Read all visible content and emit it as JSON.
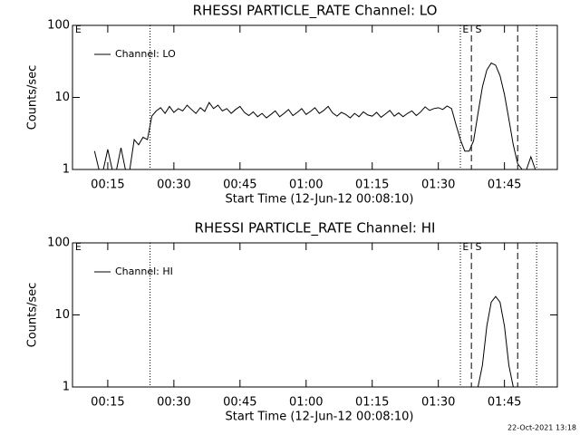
{
  "chart_data": [
    {
      "type": "line",
      "title": "RHESSI PARTICLE_RATE Channel: LO",
      "xlabel": "Start Time (12-Jun-12 00:08:10)",
      "ylabel": "Counts/sec",
      "log_y": true,
      "legend": "upper left",
      "color": "#000000",
      "xlim": [
        7,
        117
      ],
      "ylim": [
        1,
        100
      ],
      "yticks": [
        1,
        10,
        100
      ],
      "xticks": [
        {
          "value": 15,
          "label": "00:15"
        },
        {
          "value": 30,
          "label": "00:30"
        },
        {
          "value": 45,
          "label": "00:45"
        },
        {
          "value": 60,
          "label": "01:00"
        },
        {
          "value": 75,
          "label": "01:15"
        },
        {
          "value": 90,
          "label": "01:30"
        },
        {
          "value": 105,
          "label": "01:45"
        }
      ],
      "vlines": [
        {
          "x": 24.6,
          "style": "dotted"
        },
        {
          "x": 95,
          "style": "dotted"
        },
        {
          "x": 97.5,
          "style": "dashed"
        },
        {
          "x": 108,
          "style": "dashed"
        },
        {
          "x": 112.3,
          "style": "dotted"
        }
      ],
      "annotations": [
        {
          "text": "E",
          "x": 7.6
        },
        {
          "text": "E",
          "x": 95.5
        },
        {
          "text": "S",
          "x": 98.4
        }
      ],
      "x": [
        12,
        13,
        14,
        15,
        16,
        17,
        18,
        19,
        20,
        21,
        22,
        23,
        24,
        25,
        26,
        27,
        28,
        29,
        30,
        31,
        32,
        33,
        34,
        35,
        36,
        37,
        38,
        39,
        40,
        41,
        42,
        43,
        44,
        45,
        46,
        47,
        48,
        49,
        50,
        51,
        52,
        53,
        54,
        55,
        56,
        57,
        58,
        59,
        60,
        61,
        62,
        63,
        64,
        65,
        66,
        67,
        68,
        69,
        70,
        71,
        72,
        73,
        74,
        75,
        76,
        77,
        78,
        79,
        80,
        81,
        82,
        83,
        84,
        85,
        86,
        87,
        88,
        89,
        90,
        91,
        92,
        93,
        94,
        95,
        96,
        97,
        98,
        99,
        100,
        101,
        102,
        103,
        104,
        105,
        106,
        107,
        108,
        109,
        110,
        111,
        112
      ],
      "series": [
        {
          "name": "Channel: LO",
          "values": [
            1.8,
            1,
            1,
            1.9,
            1,
            1,
            2,
            1,
            1,
            2.6,
            2.2,
            2.8,
            2.6,
            5.5,
            6.5,
            7.2,
            6,
            7.5,
            6.2,
            7,
            6.5,
            7.8,
            6.8,
            6,
            7.2,
            6.4,
            8.5,
            7,
            7.8,
            6.5,
            7,
            6,
            6.8,
            7.5,
            6.2,
            5.6,
            6.3,
            5.4,
            6,
            5.2,
            5.8,
            6.5,
            5.4,
            6,
            6.8,
            5.6,
            6.2,
            7,
            5.8,
            6.4,
            7.2,
            6,
            6.6,
            7.5,
            6.1,
            5.5,
            6.2,
            5.8,
            5.2,
            6,
            5.4,
            6.3,
            5.7,
            5.5,
            6.2,
            5.3,
            5.9,
            6.6,
            5.5,
            6.1,
            5.4,
            6,
            6.5,
            5.6,
            6.3,
            7.4,
            6.6,
            7,
            7.2,
            6.8,
            7.6,
            7,
            4.2,
            2.6,
            1.8,
            1.8,
            2.5,
            6,
            14,
            24,
            30,
            28,
            20,
            11,
            5,
            2.2,
            1.2,
            1,
            1,
            1.5,
            1
          ]
        }
      ]
    },
    {
      "type": "line",
      "title": "RHESSI PARTICLE_RATE Channel: HI",
      "xlabel": "Start Time (12-Jun-12 00:08:10)",
      "ylabel": "Counts/sec",
      "log_y": true,
      "legend": "upper left",
      "color": "#000000",
      "xlim": [
        7,
        117
      ],
      "ylim": [
        1,
        100
      ],
      "yticks": [
        1,
        10,
        100
      ],
      "xticks": [
        {
          "value": 15,
          "label": "00:15"
        },
        {
          "value": 30,
          "label": "00:30"
        },
        {
          "value": 45,
          "label": "00:45"
        },
        {
          "value": 60,
          "label": "01:00"
        },
        {
          "value": 75,
          "label": "01:15"
        },
        {
          "value": 90,
          "label": "01:30"
        },
        {
          "value": 105,
          "label": "01:45"
        }
      ],
      "vlines": [
        {
          "x": 24.6,
          "style": "dotted"
        },
        {
          "x": 95,
          "style": "dotted"
        },
        {
          "x": 97.5,
          "style": "dashed"
        },
        {
          "x": 108,
          "style": "dashed"
        },
        {
          "x": 112.3,
          "style": "dotted"
        }
      ],
      "annotations": [
        {
          "text": "E",
          "x": 7.6
        },
        {
          "text": "E",
          "x": 95.5
        },
        {
          "text": "S",
          "x": 98.4
        }
      ],
      "x": [
        99,
        100,
        101,
        102,
        103,
        104,
        105,
        106,
        107
      ],
      "series": [
        {
          "name": "Channel: HI",
          "values": [
            1,
            2,
            7,
            15,
            18,
            15,
            7,
            2,
            1
          ]
        }
      ]
    }
  ],
  "footer": "22-Oct-2021 13:18"
}
